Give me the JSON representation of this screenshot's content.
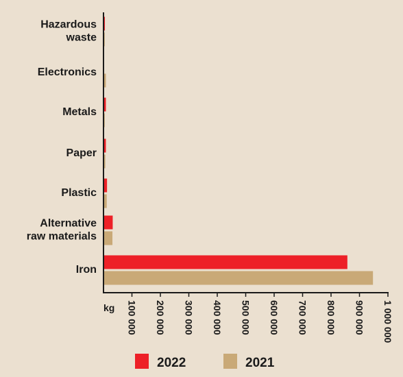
{
  "chart_data": {
    "type": "bar",
    "orientation": "horizontal",
    "categories": [
      [
        "Hazardous",
        "waste"
      ],
      [
        "Electronics"
      ],
      [
        "Metals"
      ],
      [
        "Paper"
      ],
      [
        "Plastic"
      ],
      [
        "Alternative",
        "raw materials"
      ],
      [
        "Iron"
      ]
    ],
    "series": [
      {
        "name": "2022",
        "color": "#ed2027",
        "values": [
          2500,
          0,
          6000,
          6000,
          10000,
          30000,
          855000
        ]
      },
      {
        "name": "2021",
        "color": "#c9a977",
        "values": [
          2000,
          6000,
          2000,
          4000,
          9000,
          29000,
          945000
        ]
      }
    ],
    "xlim": [
      0,
      1000000
    ],
    "xticks": [
      "100 000",
      "200 000",
      "300 000",
      "400 000",
      "500 000",
      "600 000",
      "700 000",
      "800 000",
      "900 000",
      "1 000 000"
    ],
    "xtick_values": [
      100000,
      200000,
      300000,
      400000,
      500000,
      600000,
      700000,
      800000,
      900000,
      1000000
    ],
    "xunit": "kg",
    "legend_position": "bottom"
  },
  "colors": {
    "background": "#ebe0d0",
    "axis": "#1a1a1a"
  }
}
